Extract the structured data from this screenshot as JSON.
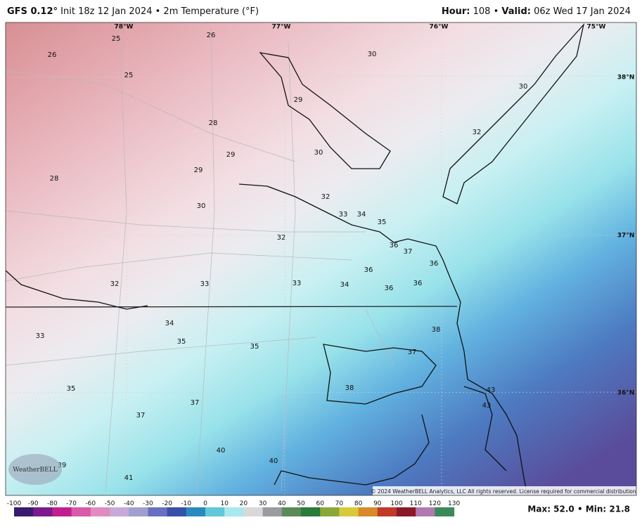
{
  "header": {
    "model": "GFS 0.12°",
    "run_info": "Init 18z 12 Jan 2024 • 2m Temperature (°F)",
    "hour_label": "Hour:",
    "hour_value": "108 •",
    "valid_label": "Valid:",
    "valid_value": "06z Wed 17 Jan 2024"
  },
  "map": {
    "longitude_labels": [
      "78°W",
      "77°W",
      "76°W",
      "75°W"
    ],
    "latitude_labels": [
      "38°N",
      "37°N",
      "36°N"
    ],
    "temperature_labels": [
      25,
      26,
      26,
      25,
      30,
      29,
      30,
      28,
      32,
      29,
      30,
      29,
      28,
      30,
      32,
      33,
      34,
      35,
      32,
      36,
      37,
      36,
      36,
      32,
      33,
      33,
      34,
      36,
      36,
      34,
      38,
      33,
      35,
      35,
      37,
      35,
      38,
      43,
      43,
      37,
      37,
      40,
      40,
      39,
      41
    ],
    "logo": "WeatherBELL",
    "copyright": "© 2024 WeatherBELL Analytics, LLC  All rights reserved. License required for commercial distribution."
  },
  "colorbar": {
    "ticks": [
      -100,
      -90,
      -80,
      -70,
      -60,
      -50,
      -40,
      -30,
      -20,
      -10,
      0,
      10,
      20,
      30,
      40,
      50,
      60,
      70,
      80,
      90,
      100,
      110,
      120,
      130
    ]
  },
  "footer": {
    "summary": "Max: 52.0 • Min: 21.8"
  }
}
